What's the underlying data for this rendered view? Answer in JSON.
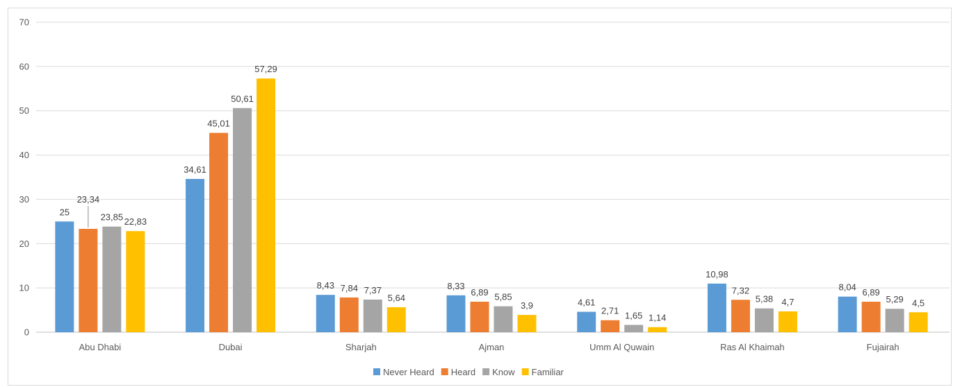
{
  "chart_data": {
    "type": "bar",
    "title": "",
    "xlabel": "",
    "ylabel": "",
    "ylim": [
      0,
      70
    ],
    "y_ticks": [
      "0",
      "10",
      "20",
      "30",
      "40",
      "50",
      "60",
      "70"
    ],
    "grid": "horizontal",
    "legend_position": "bottom",
    "categories": [
      "Abu Dhabi",
      "Dubai",
      "Sharjah",
      "Ajman",
      "Umm Al Quwain",
      "Ras Al Khaimah",
      "Fujairah"
    ],
    "series": [
      {
        "name": "Never Heard",
        "color": "#5b9bd5",
        "values": [
          25,
          34.61,
          8.43,
          8.33,
          4.61,
          10.98,
          8.04
        ],
        "labels": [
          "25",
          "34,61",
          "8,43",
          "8,33",
          "4,61",
          "10,98",
          "8,04"
        ]
      },
      {
        "name": "Heard",
        "color": "#ed7d31",
        "values": [
          23.34,
          45.01,
          7.84,
          6.89,
          2.71,
          7.32,
          6.89
        ],
        "labels": [
          "23,34",
          "45,01",
          "7,84",
          "6,89",
          "2,71",
          "7,32",
          "6,89"
        ]
      },
      {
        "name": "Know",
        "color": "#a5a5a5",
        "values": [
          23.85,
          50.61,
          7.37,
          5.85,
          1.65,
          5.38,
          5.29
        ],
        "labels": [
          "23,85",
          "50,61",
          "7,37",
          "5,85",
          "1,65",
          "5,38",
          "5,29"
        ]
      },
      {
        "name": "Familiar",
        "color": "#ffc000",
        "values": [
          22.83,
          57.29,
          5.64,
          3.9,
          1.14,
          4.7,
          4.5
        ],
        "labels": [
          "22,83",
          "57,29",
          "5,64",
          "3,9",
          "1,14",
          "4,7",
          "4,5"
        ]
      }
    ]
  }
}
